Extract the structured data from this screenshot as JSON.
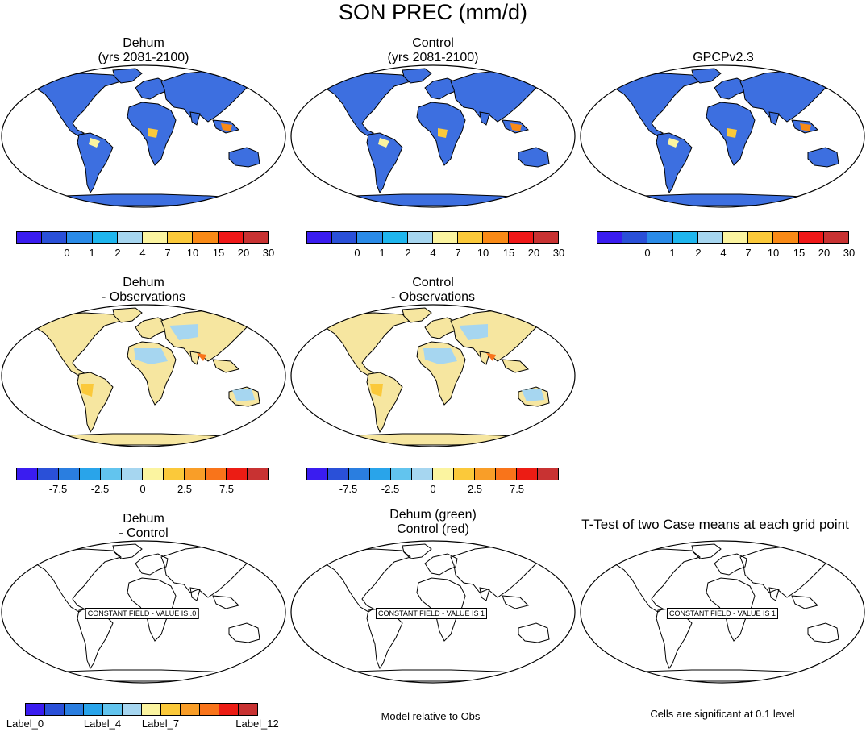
{
  "title": "SON PREC (mm/d)",
  "colors": {
    "abs_scale": [
      "#3a1cf0",
      "#2a50d8",
      "#2a8be8",
      "#1fb6ee",
      "#a6d6f0",
      "#fbf4a0",
      "#fbc93a",
      "#f98a16",
      "#f01818",
      "#c83232"
    ],
    "diff_scale": [
      "#3a1cf0",
      "#2a50d8",
      "#2a7ee0",
      "#29a4ea",
      "#62c4ee",
      "#a6d6f0",
      "#fbf4a0",
      "#fbc93a",
      "#f99e28",
      "#f9741a",
      "#ec1c14",
      "#c83232"
    ],
    "land_abs": "#3d6fe0",
    "land_diff": "#f6e6a0"
  },
  "panels": [
    {
      "title1": "Dehum",
      "title2": "(yrs 2081-2100)"
    },
    {
      "title1": "Control",
      "title2": "(yrs 2081-2100)"
    },
    {
      "title1": "GPCPv2.3",
      "title2": ""
    },
    {
      "title1": "Dehum",
      "title2": "- Observations"
    },
    {
      "title1": "Control",
      "title2": "- Observations"
    },
    {
      "title1": "Dehum",
      "title2": "- Control"
    },
    {
      "title1": "Dehum (green)",
      "title2": "Control (red)"
    },
    {
      "title1": "T-Test of two Case means at each grid point",
      "title2": ""
    }
  ],
  "abs_labels": [
    "0",
    "1",
    "2",
    "4",
    "7",
    "10",
    "15",
    "20",
    "30"
  ],
  "diff_labels": [
    "-7.5",
    "-2.5",
    "0",
    "2.5",
    "7.5"
  ],
  "test_labels": [
    "Label_0",
    "Label_4",
    "Label_7",
    "Label_12"
  ],
  "constant_labels": [
    "CONSTANT FIELD - VALUE IS .0",
    "CONSTANT FIELD - VALUE IS 1",
    "CONSTANT FIELD - VALUE IS 1"
  ],
  "notes": {
    "model_rel": "Model relative to Obs",
    "cells_sig": "Cells are significant at 0.1 level"
  }
}
